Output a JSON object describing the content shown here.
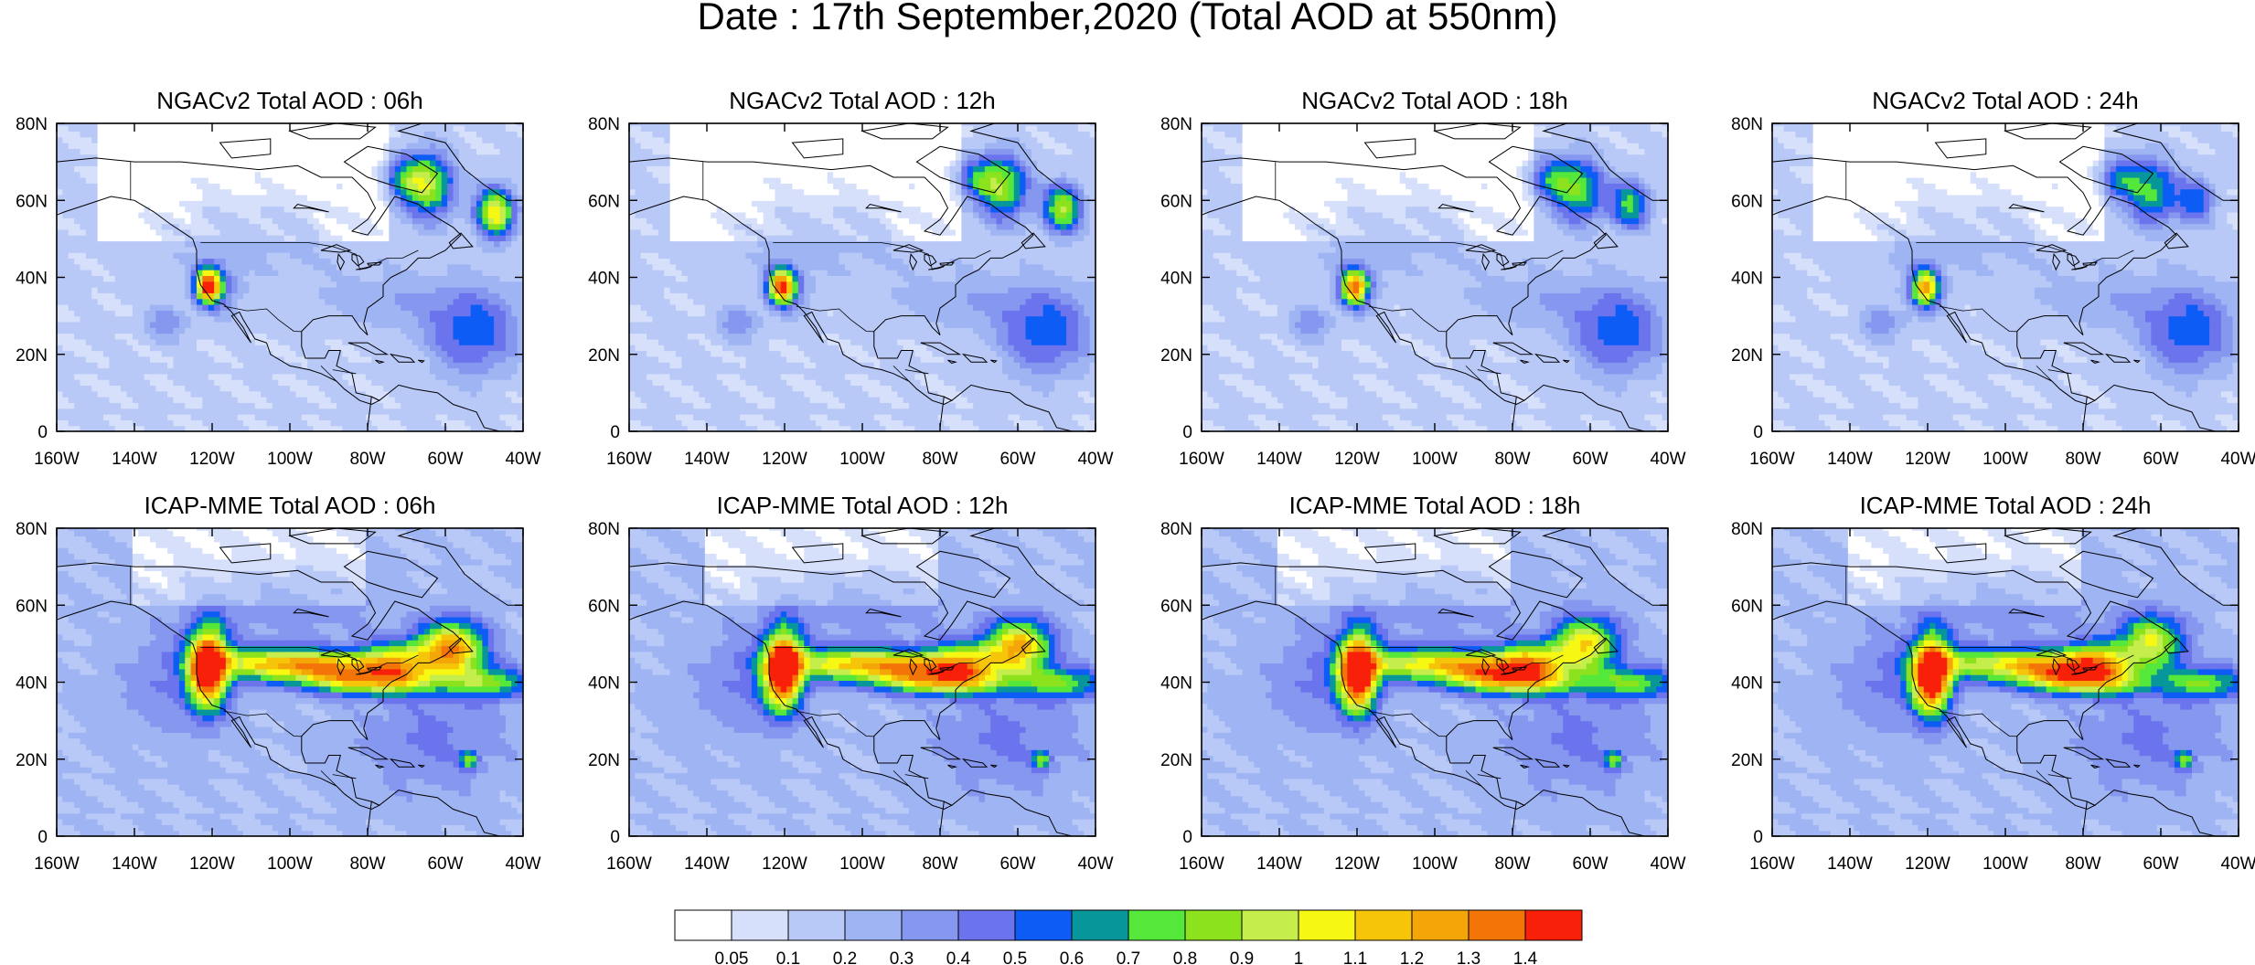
{
  "figure": {
    "title": "Date : 17th September,2020 (Total AOD at 550nm)"
  },
  "axes": {
    "lat_ticks": [
      "80N",
      "60N",
      "40N",
      "20N",
      "0"
    ],
    "lon_ticks": [
      "160W",
      "140W",
      "120W",
      "100W",
      "80W",
      "60W",
      "40W"
    ],
    "lon_range": [
      -160,
      -40
    ],
    "lat_range": [
      0,
      80
    ]
  },
  "panels": [
    {
      "title": "NGACv2 Total AOD : 06h",
      "model": "NGACv2",
      "hour": 6
    },
    {
      "title": "NGACv2 Total AOD : 12h",
      "model": "NGACv2",
      "hour": 12
    },
    {
      "title": "NGACv2 Total AOD : 18h",
      "model": "NGACv2",
      "hour": 18
    },
    {
      "title": "NGACv2 Total AOD : 24h",
      "model": "NGACv2",
      "hour": 24
    },
    {
      "title": "ICAP-MME Total AOD : 06h",
      "model": "ICAP-MME",
      "hour": 6
    },
    {
      "title": "ICAP-MME Total AOD : 12h",
      "model": "ICAP-MME",
      "hour": 12
    },
    {
      "title": "ICAP-MME Total AOD : 18h",
      "model": "ICAP-MME",
      "hour": 18
    },
    {
      "title": "ICAP-MME Total AOD : 24h",
      "model": "ICAP-MME",
      "hour": 24
    }
  ],
  "colorbar": {
    "labels": [
      "0.05",
      "0.1",
      "0.2",
      "0.3",
      "0.4",
      "0.5",
      "0.6",
      "0.7",
      "0.8",
      "0.9",
      "1",
      "1.1",
      "1.2",
      "1.3",
      "1.4"
    ],
    "colors": [
      "#ffffff",
      "#d6e0fb",
      "#b8c8f7",
      "#9fb4f3",
      "#8597ef",
      "#6b74ec",
      "#0d5cf5",
      "#07969a",
      "#55e83a",
      "#8de21e",
      "#c5ee4c",
      "#f7f714",
      "#f6c408",
      "#f4a508",
      "#f37508",
      "#f82008"
    ]
  }
}
